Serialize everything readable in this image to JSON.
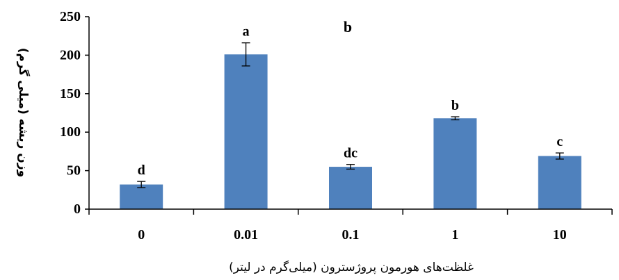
{
  "chart_data": {
    "type": "bar",
    "panel_label": "b",
    "categories": [
      "0",
      "0.01",
      "0.1",
      "1",
      "10"
    ],
    "series": [
      {
        "values": [
          32,
          201,
          55,
          118,
          69
        ],
        "error": [
          4,
          15,
          3,
          2,
          4
        ],
        "significance": [
          "d",
          "a",
          "dc",
          "b",
          "c"
        ],
        "color": "#4f81bd"
      }
    ],
    "xlabel": "غلظت‌های هورمون پروژسترون (میلی‌گرم در لیتر)",
    "ylabel": "وزن ریشه (میلی گرم)",
    "ylim": [
      0,
      250
    ],
    "yticks": [
      "0",
      "50",
      "100",
      "150",
      "200",
      "250"
    ],
    "grid": false,
    "legend": "none"
  }
}
